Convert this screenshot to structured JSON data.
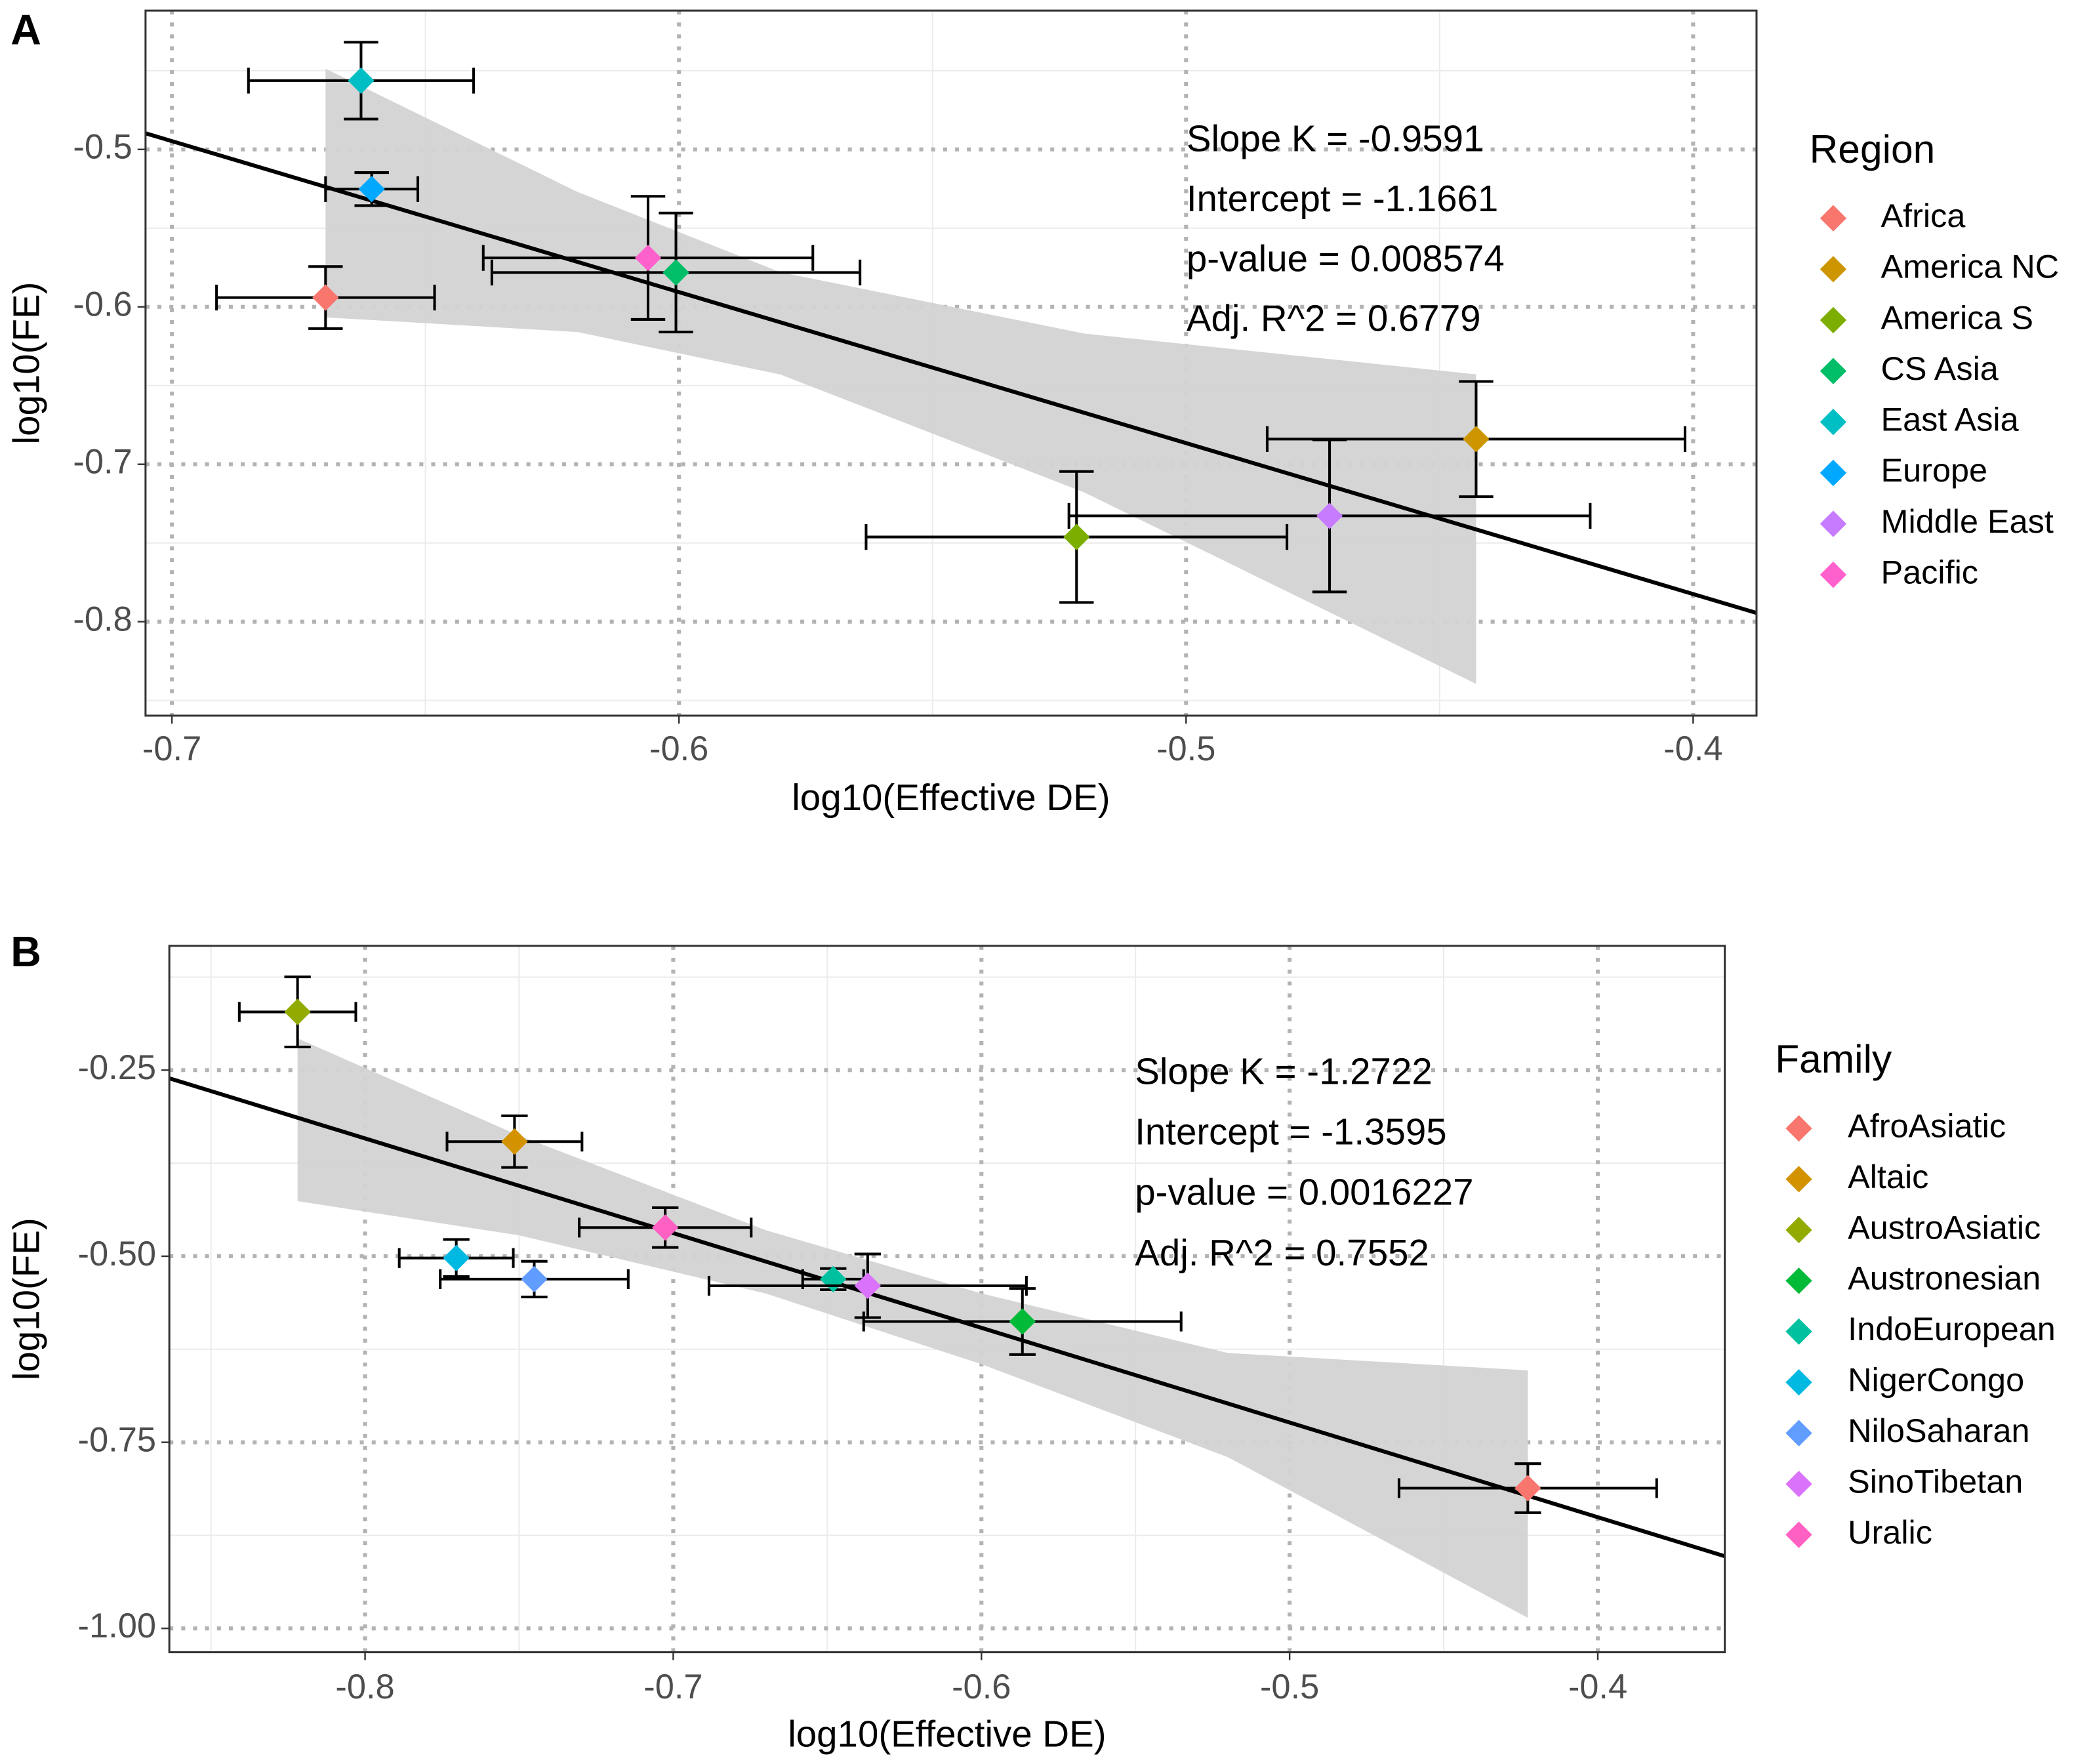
{
  "chart_data": [
    {
      "type": "scatter",
      "panel_label": "A",
      "x_label": "log10(Effective DE)",
      "y_label": "log10(FE)",
      "xlim": [
        -0.7052,
        -0.3875
      ],
      "ylim": [
        -0.8597,
        -0.4118
      ],
      "xticks": [
        -0.7,
        -0.6,
        -0.5,
        -0.4
      ],
      "yticks": [
        -0.5,
        -0.6,
        -0.7,
        -0.8
      ],
      "grid": true,
      "legend": "right",
      "legend_title": "Region",
      "annotations": [
        "Slope K = -0.9591",
        "Intercept = -1.1661",
        "p-value = 0.008574",
        "Adj. R^2 = 0.6779"
      ],
      "fit": {
        "slope": -0.9591,
        "intercept": -1.1661,
        "color": "#000000"
      },
      "band": {
        "x": [
          -0.6697,
          -0.62,
          -0.58,
          -0.52,
          -0.4428
        ],
        "lower": [
          -0.6067,
          -0.616,
          -0.643,
          -0.718,
          -0.8395
        ],
        "upper": [
          -0.4487,
          -0.527,
          -0.578,
          -0.617,
          -0.6429
        ],
        "color": "#d3d3d3"
      },
      "series": [
        {
          "name": "Africa",
          "color": "#F8766D",
          "x": [
            -0.6697
          ],
          "values": [
            -0.5941
          ],
          "x_errors": [
            0.0215
          ],
          "y_errors": [
            0.0197
          ]
        },
        {
          "name": "America NC",
          "color": "#CD9600",
          "x": [
            -0.4428
          ],
          "values": [
            -0.684
          ],
          "x_errors": [
            0.0412
          ],
          "y_errors": [
            0.0366
          ]
        },
        {
          "name": "America S",
          "color": "#7CAE00",
          "x": [
            -0.5216
          ],
          "values": [
            -0.7462
          ],
          "x_errors": [
            0.0415
          ],
          "y_errors": [
            0.0416
          ]
        },
        {
          "name": "CS Asia",
          "color": "#00BE67",
          "x": [
            -0.6006
          ],
          "values": [
            -0.5782
          ],
          "x_errors": [
            0.0363
          ],
          "y_errors": [
            0.0378
          ]
        },
        {
          "name": "East Asia",
          "color": "#00BFC4",
          "x": [
            -0.6627
          ],
          "values": [
            -0.4563
          ],
          "x_errors": [
            0.0222
          ],
          "y_errors": [
            0.0244
          ]
        },
        {
          "name": "Europe",
          "color": "#00A9FF",
          "x": [
            -0.6606
          ],
          "values": [
            -0.5252
          ],
          "x_errors": [
            0.0091
          ],
          "y_errors": [
            0.0105
          ]
        },
        {
          "name": "Middle East",
          "color": "#C77CFF",
          "x": [
            -0.4717
          ],
          "values": [
            -0.7328
          ],
          "x_errors": [
            0.0514
          ],
          "y_errors": [
            0.0483
          ]
        },
        {
          "name": "Pacific",
          "color": "#FF61CC",
          "x": [
            -0.6061
          ],
          "values": [
            -0.5689
          ],
          "x_errors": [
            0.0325
          ],
          "y_errors": [
            0.0391
          ]
        }
      ]
    },
    {
      "type": "scatter",
      "panel_label": "B",
      "x_label": "log10(Effective DE)",
      "y_label": "log10(FE)",
      "xlim": [
        -0.8635,
        -0.3588
      ],
      "ylim": [
        -1.032,
        -0.083
      ],
      "xticks": [
        -0.8,
        -0.7,
        -0.6,
        -0.5,
        -0.4
      ],
      "yticks": [
        -0.25,
        {
          "value": -0.5,
          "label": "-0.50"
        },
        -0.75,
        {
          "value": -1,
          "label": "-1.00"
        }
      ],
      "grid": true,
      "legend": "right",
      "legend_title": "Family",
      "annotations": [
        "Slope K = -1.2722",
        "Intercept = -1.3595",
        "p-value = 0.0016227",
        "Adj. R^2 = 0.7552"
      ],
      "fit": {
        "slope": -1.2722,
        "intercept": -1.3595,
        "color": "#000000"
      },
      "band": {
        "x": [
          -0.8219,
          -0.75,
          -0.67,
          -0.6,
          -0.52,
          -0.4227
        ],
        "lower": [
          -0.426,
          -0.472,
          -0.55,
          -0.645,
          -0.77,
          -0.9857
        ],
        "upper": [
          -0.2073,
          -0.338,
          -0.465,
          -0.55,
          -0.63,
          -0.6534
        ],
        "color": "#d3d3d3"
      },
      "series": [
        {
          "name": "AfroAsiatic",
          "color": "#F8766D",
          "x": [
            -0.4227
          ],
          "values": [
            -0.8116
          ],
          "x_errors": [
            0.0418
          ],
          "y_errors": [
            0.0329
          ]
        },
        {
          "name": "Altaic",
          "color": "#D39200",
          "x": [
            -0.7515
          ],
          "values": [
            -0.346
          ],
          "x_errors": [
            0.0219
          ],
          "y_errors": [
            0.0347
          ]
        },
        {
          "name": "AustroAsiatic",
          "color": "#93AA00",
          "x": [
            -0.8219
          ],
          "values": [
            -0.1718
          ],
          "x_errors": [
            0.0189
          ],
          "y_errors": [
            0.0471
          ]
        },
        {
          "name": "Austronesian",
          "color": "#00BA38",
          "x": [
            -0.5867
          ],
          "values": [
            -0.5877
          ],
          "x_errors": [
            0.0515
          ],
          "y_errors": [
            0.0444
          ]
        },
        {
          "name": "IndoEuropean",
          "color": "#00C19F",
          "x": [
            -0.6481
          ],
          "values": [
            -0.5308
          ],
          "x_errors": [
            0.0099
          ],
          "y_errors": [
            0.0142
          ]
        },
        {
          "name": "NigerCongo",
          "color": "#00B9E3",
          "x": [
            -0.7704
          ],
          "values": [
            -0.5024
          ],
          "x_errors": [
            0.0185
          ],
          "y_errors": [
            0.0249
          ]
        },
        {
          "name": "NiloSaharan",
          "color": "#619CFF",
          "x": [
            -0.7451
          ],
          "values": [
            -0.5308
          ],
          "x_errors": [
            0.0305
          ],
          "y_errors": [
            0.024
          ]
        },
        {
          "name": "SinoTibetan",
          "color": "#DB72FB",
          "x": [
            -0.6369
          ],
          "values": [
            -0.5397
          ],
          "x_errors": [
            0.0515
          ],
          "y_errors": [
            0.0427
          ]
        },
        {
          "name": "Uralic",
          "color": "#FF61C3",
          "x": [
            -0.7026
          ],
          "values": [
            -0.4615
          ],
          "x_errors": [
            0.0279
          ],
          "y_errors": [
            0.0267
          ]
        }
      ]
    }
  ]
}
